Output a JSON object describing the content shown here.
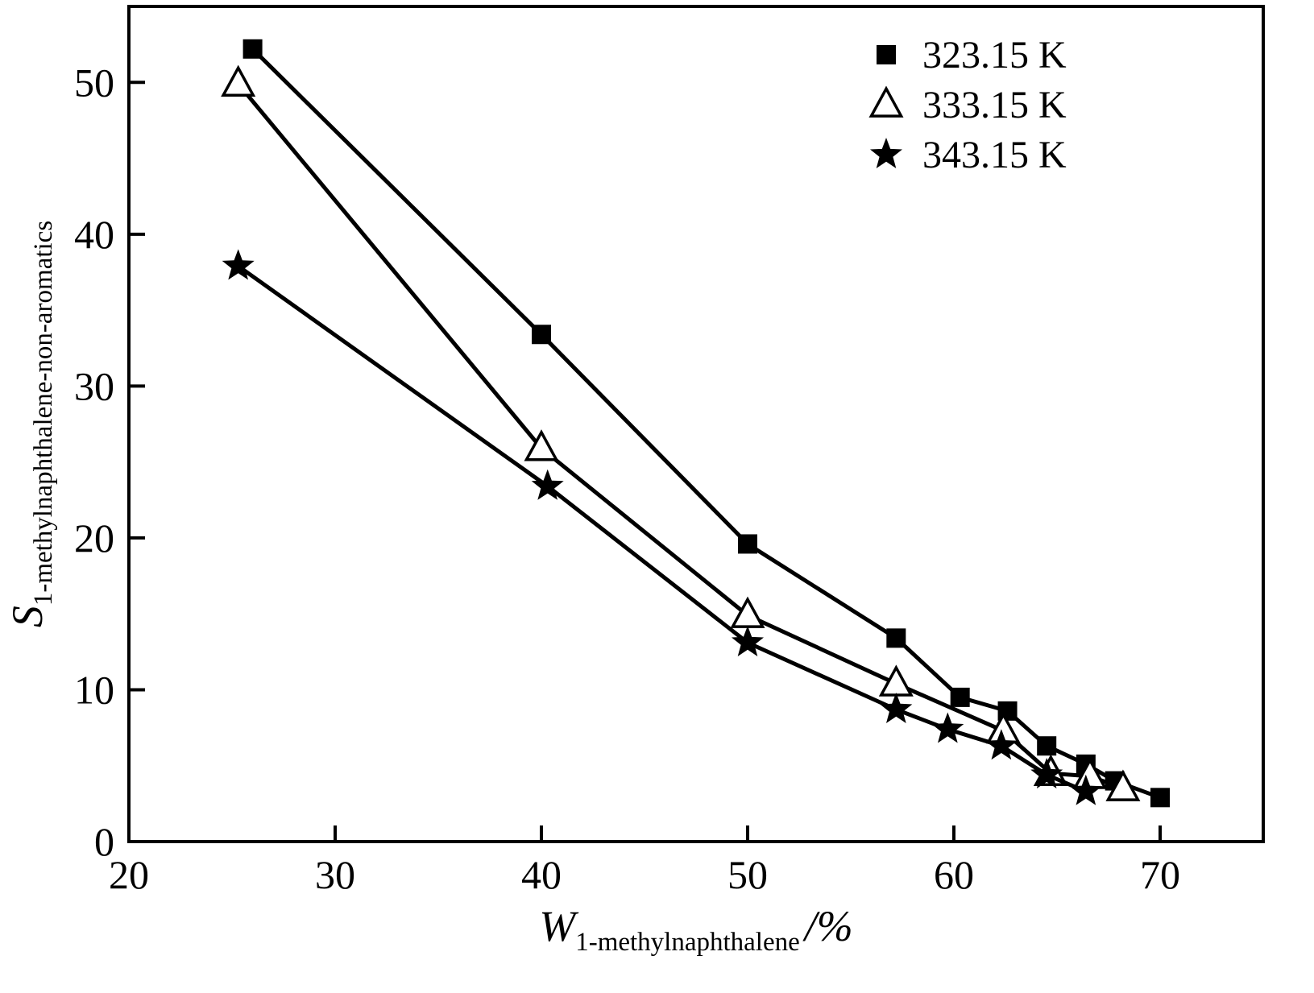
{
  "chart_data": {
    "type": "line",
    "title": "",
    "xlabel": {
      "main": "W",
      "sub": "1-methylnaphthalene",
      "suffix": "/%"
    },
    "ylabel": {
      "main": "S",
      "sub": "1-methylnaphthalene-non-aromatics"
    },
    "xlim": [
      20,
      75
    ],
    "ylim": [
      0,
      55
    ],
    "xticks": [
      20,
      30,
      40,
      50,
      60,
      70
    ],
    "yticks": [
      0,
      10,
      20,
      30,
      40,
      50
    ],
    "grid": false,
    "legend_position": "top-right",
    "ink_color": "#000000",
    "series": [
      {
        "name": "323.15 K",
        "marker": "square-filled",
        "color": "#000000",
        "points": [
          [
            26.0,
            52.2
          ],
          [
            40.0,
            33.4
          ],
          [
            50.0,
            19.6
          ],
          [
            57.2,
            13.4
          ],
          [
            60.3,
            9.5
          ],
          [
            62.6,
            8.6
          ],
          [
            64.5,
            6.3
          ],
          [
            66.4,
            5.1
          ],
          [
            67.8,
            4.0
          ],
          [
            70.0,
            2.9
          ]
        ]
      },
      {
        "name": "333.15 K",
        "marker": "triangle-open",
        "color": "#000000",
        "points": [
          [
            25.3,
            49.9
          ],
          [
            40.0,
            25.9
          ],
          [
            50.0,
            14.9
          ],
          [
            57.2,
            10.4
          ],
          [
            62.4,
            7.3
          ],
          [
            64.7,
            4.5
          ],
          [
            66.6,
            4.3
          ],
          [
            68.2,
            3.5
          ]
        ]
      },
      {
        "name": "343.15 K",
        "marker": "star-filled",
        "color": "#000000",
        "points": [
          [
            25.3,
            37.9
          ],
          [
            40.3,
            23.4
          ],
          [
            50.0,
            13.1
          ],
          [
            57.2,
            8.7
          ],
          [
            59.7,
            7.4
          ],
          [
            62.3,
            6.3
          ],
          [
            64.5,
            4.4
          ],
          [
            66.4,
            3.3
          ]
        ]
      }
    ]
  }
}
